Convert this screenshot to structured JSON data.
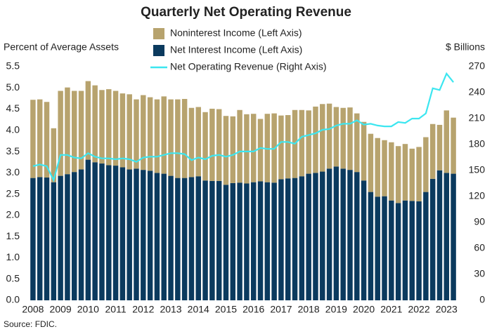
{
  "chart_data": {
    "type": "bar",
    "title": "Quarterly Net Operating Revenue",
    "y_label": "Percent of Average Assets",
    "y2_label": "$ Billions",
    "source": "Source: FDIC.",
    "categories": [
      "2008",
      null,
      null,
      null,
      "2009",
      null,
      null,
      null,
      "2010",
      null,
      null,
      null,
      "2011",
      null,
      null,
      null,
      "2012",
      null,
      null,
      null,
      "2013",
      null,
      null,
      null,
      "2014",
      null,
      null,
      null,
      "2015",
      null,
      null,
      null,
      "2016",
      null,
      null,
      null,
      "2017",
      null,
      null,
      null,
      "2018",
      null,
      null,
      null,
      "2019",
      null,
      null,
      null,
      "2020",
      null,
      null,
      null,
      "2021",
      null,
      null,
      null,
      "2022",
      null,
      null,
      null,
      "2023",
      null
    ],
    "series": [
      {
        "name": "Noninterest Income (Left Axis)",
        "color": "#b7a36e",
        "values": [
          1.84,
          1.83,
          1.78,
          1.27,
          2.0,
          2.04,
          1.91,
          1.85,
          1.85,
          1.81,
          1.73,
          1.79,
          1.76,
          1.74,
          1.77,
          1.63,
          1.76,
          1.73,
          1.73,
          1.82,
          1.8,
          1.85,
          1.86,
          1.63,
          1.63,
          1.61,
          1.7,
          1.69,
          1.62,
          1.57,
          1.71,
          1.63,
          1.61,
          1.47,
          1.61,
          1.63,
          1.5,
          1.49,
          1.6,
          1.56,
          1.49,
          1.56,
          1.59,
          1.53,
          1.4,
          1.43,
          1.47,
          1.38,
          1.38,
          1.37,
          1.38,
          1.32,
          1.37,
          1.34,
          1.33,
          1.23,
          1.28,
          1.29,
          1.29,
          1.07,
          1.47,
          1.32
        ]
      },
      {
        "name": "Net Interest Income (Left Axis)",
        "color": "#0b3a5e",
        "values": [
          2.88,
          2.9,
          2.89,
          2.78,
          2.93,
          2.97,
          3.02,
          3.08,
          3.31,
          3.25,
          3.22,
          3.18,
          3.17,
          3.13,
          3.08,
          3.1,
          3.07,
          3.05,
          3.0,
          2.98,
          2.93,
          2.88,
          2.88,
          2.9,
          2.92,
          2.82,
          2.81,
          2.81,
          2.72,
          2.76,
          2.77,
          2.75,
          2.78,
          2.8,
          2.78,
          2.77,
          2.85,
          2.87,
          2.88,
          2.92,
          2.98,
          3.0,
          3.03,
          3.1,
          3.15,
          3.1,
          3.07,
          3.02,
          2.82,
          2.55,
          2.44,
          2.45,
          2.35,
          2.29,
          2.35,
          2.34,
          2.33,
          2.55,
          2.86,
          3.06,
          3.0,
          2.98
        ]
      },
      {
        "name": "Net Operating Revenue (Right Axis)",
        "color": "#3ce6f0",
        "axis": "y2",
        "type": "line",
        "values": [
          155,
          157,
          155,
          139,
          168,
          168,
          165,
          164,
          170,
          166,
          164,
          164,
          163,
          164,
          163,
          160,
          165,
          166,
          166,
          168,
          170,
          170,
          169,
          162,
          165,
          163,
          167,
          168,
          166,
          168,
          172,
          172,
          172,
          176,
          175,
          175,
          183,
          183,
          181,
          189,
          191,
          193,
          197,
          198,
          202,
          204,
          204,
          208,
          203,
          204,
          202,
          201,
          201,
          206,
          205,
          210,
          210,
          216,
          245,
          243,
          262,
          252
        ]
      }
    ],
    "ylim": [
      0,
      5.5
    ],
    "yticks": [
      {
        "value": 0,
        "label": "0.0"
      },
      0.5,
      {
        "value": 1,
        "label": "1.0"
      },
      1.5,
      {
        "value": 2,
        "label": "2.0"
      },
      2.5,
      {
        "value": 3,
        "label": "3.0"
      },
      3.5,
      {
        "value": 4,
        "label": "4.0"
      },
      4.5,
      {
        "value": 5,
        "label": "5.0"
      },
      5.5
    ],
    "y2lim": [
      0,
      270
    ],
    "y2ticks": [
      0,
      30,
      60,
      90,
      120,
      150,
      180,
      210,
      240,
      270
    ],
    "grid": false
  }
}
